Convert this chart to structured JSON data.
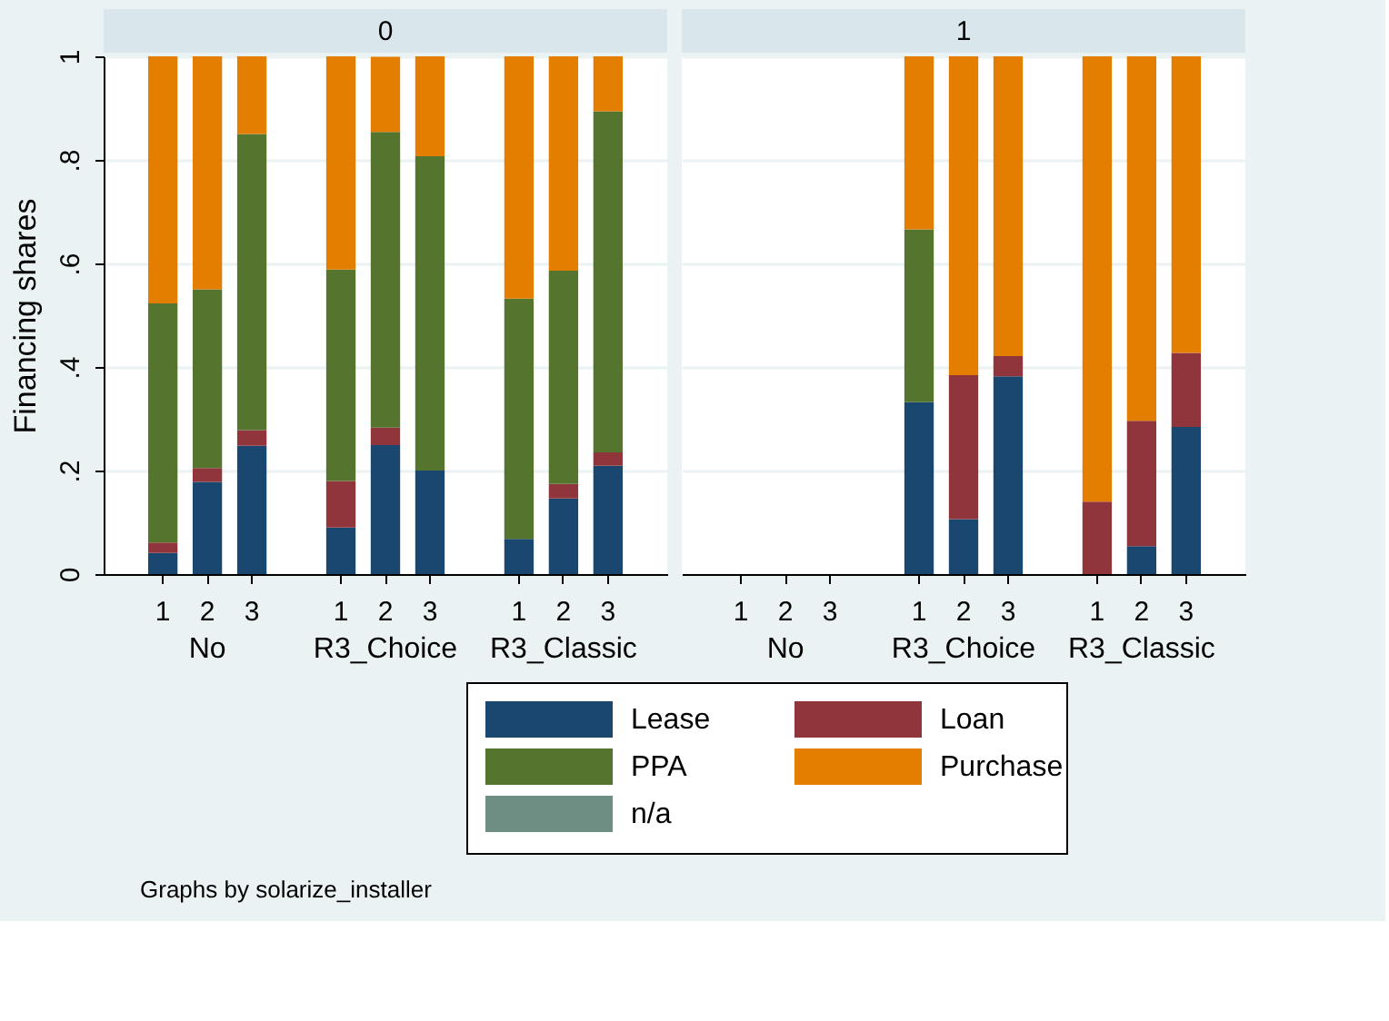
{
  "chart_data": [
    {
      "type": "bar",
      "stacked": true,
      "title": "0",
      "ylabel": "Financing shares",
      "categories": [
        "1",
        "2",
        "3",
        null,
        "1",
        "2",
        "3",
        null,
        "1",
        "2",
        "3"
      ],
      "series": [
        {
          "name": "Lease",
          "color": "#1a476f",
          "values": [
            0.041,
            0.178,
            0.248,
            null,
            0.09,
            0.249,
            0.2,
            null,
            0.068,
            0.146,
            0.209
          ]
        },
        {
          "name": "Loan",
          "color": "#90353b",
          "values": [
            0.02,
            0.027,
            0.03,
            null,
            0.09,
            0.034,
            null,
            null,
            null,
            0.028,
            0.026
          ]
        },
        {
          "name": "PPA",
          "color": "#55752f",
          "values": [
            0.462,
            0.345,
            0.572,
            null,
            0.408,
            0.571,
            0.607,
            null,
            0.464,
            0.412,
            0.659
          ]
        },
        {
          "name": "Purchase",
          "color": "#e37e00",
          "values": [
            0.477,
            0.45,
            0.15,
            null,
            0.412,
            0.145,
            0.193,
            null,
            0.468,
            0.414,
            0.106
          ]
        },
        {
          "name": "n/a",
          "color": "#6e8e84",
          "values": [
            null,
            null,
            null,
            null,
            null,
            null,
            null,
            null,
            null,
            null,
            null
          ]
        }
      ],
      "ylim": [
        0,
        1
      ],
      "yticks": [
        0,
        {
          "value": 0.2,
          "label": ".2"
        },
        {
          "value": 0.4,
          "label": ".4"
        },
        {
          "value": 0.6,
          "label": ".6"
        },
        {
          "value": 0.8,
          "label": ".8"
        },
        1
      ],
      "grid": "y",
      "legend": "bottom",
      "annotations": [
        "No",
        "R3_Choice",
        "R3_Classic",
        "Graphs by solarize_installer"
      ]
    },
    {
      "type": "bar",
      "stacked": true,
      "title": "1",
      "categories": [
        "1",
        "2",
        "3",
        null,
        "1",
        "2",
        "3",
        null,
        "1",
        "2",
        "3"
      ],
      "series": [
        {
          "color": "#1a476f",
          "values": [
            null,
            null,
            null,
            null,
            0.332,
            0.106,
            0.382,
            null,
            null,
            0.054,
            0.284
          ]
        },
        {
          "color": "#90353b",
          "values": [
            null,
            null,
            null,
            null,
            null,
            0.278,
            0.039,
            null,
            0.14,
            0.242,
            0.143
          ]
        },
        {
          "color": "#55752f",
          "values": [
            null,
            null,
            null,
            null,
            0.334,
            null,
            null,
            null,
            null,
            null,
            null
          ]
        },
        {
          "color": "#e37e00",
          "values": [
            null,
            null,
            null,
            null,
            0.334,
            0.616,
            0.579,
            null,
            0.86,
            0.704,
            0.573
          ]
        },
        {
          "color": "#6e8e84",
          "values": [
            null,
            null,
            null,
            null,
            null,
            null,
            null,
            null,
            null,
            null,
            null
          ]
        }
      ],
      "ylim": [
        0,
        1
      ],
      "yticks": [
        0,
        0.2,
        0.4,
        0.6,
        0.8,
        1
      ],
      "grid": "y",
      "tick_labels": "x",
      "annotations": [
        "No",
        "R3_Choice",
        "R3_Classic"
      ]
    }
  ]
}
